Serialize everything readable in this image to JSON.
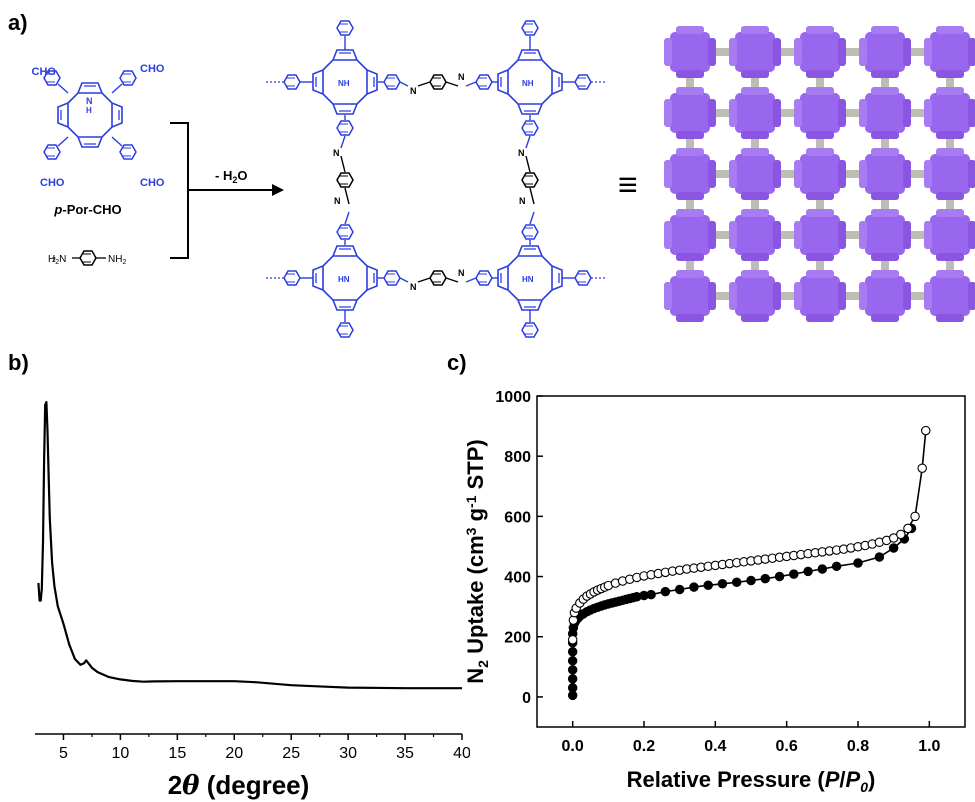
{
  "panels": {
    "a": "a)",
    "b": "b)",
    "c": "c)"
  },
  "scheme": {
    "aldehyde_group": "CHO",
    "monomer_name_italic": "p",
    "monomer_name_rest": "-Por-CHO",
    "amine_nh2": "NH",
    "amine_sub": "2",
    "pyrrole_nh": "NH",
    "pyrrole_hn": "HN",
    "imine_n": "N",
    "pyrrole_h": "H",
    "condensation_prefix": "- H",
    "condensation_sub": "2",
    "condensation_suffix": "O",
    "equiv_symbol": "≡",
    "colors": {
      "structure": "#2b3de0",
      "framework_node": "#9966ee",
      "framework_rod": "#bdbdb4"
    }
  },
  "chart_data": [
    {
      "type": "line",
      "xlabel_prefix": "2",
      "xlabel_theta": "θ",
      "xlabel_suffix": " (degree)",
      "xlim": [
        2.5,
        40
      ],
      "xticks": [
        5,
        10,
        15,
        20,
        25,
        30,
        35,
        40
      ],
      "y_axis_shown": false,
      "series": [
        {
          "x": [
            2.8,
            2.9,
            3.0,
            3.1,
            3.2,
            3.3,
            3.4,
            3.5,
            3.6,
            3.7,
            3.8,
            4.0,
            4.2,
            4.5,
            5.0,
            5.5,
            6.0,
            6.5,
            6.8,
            7.0,
            7.2,
            7.5,
            8.0,
            9.0,
            10.0,
            11.0,
            12.0,
            13.0,
            15.0,
            17.0,
            20.0,
            22.0,
            25.0,
            28.0,
            30.0,
            35.0,
            40.0
          ],
          "y": [
            0.38,
            0.32,
            0.32,
            0.36,
            0.52,
            0.8,
            0.99,
            1.0,
            0.9,
            0.74,
            0.6,
            0.45,
            0.37,
            0.3,
            0.24,
            0.17,
            0.12,
            0.1,
            0.105,
            0.115,
            0.105,
            0.09,
            0.075,
            0.058,
            0.05,
            0.045,
            0.042,
            0.043,
            0.044,
            0.044,
            0.044,
            0.04,
            0.03,
            0.025,
            0.022,
            0.02,
            0.02
          ]
        }
      ]
    },
    {
      "type": "scatter",
      "xlabel": "Relative Pressure (",
      "xlabel_italic": "P",
      "xlabel_slash": "/",
      "xlabel_italic2": "P",
      "xlabel_sub": "0",
      "xlabel_close": ")",
      "ylabel_n": "N",
      "ylabel_sub": "2",
      "ylabel_main": " Uptake (cm",
      "ylabel_sup3": "3",
      "ylabel_g": " g",
      "ylabel_sup": "-1",
      "ylabel_end": " STP)",
      "xlim": [
        -0.1,
        1.1
      ],
      "ylim": [
        -100,
        1000
      ],
      "xticks": [
        0.0,
        0.2,
        0.4,
        0.6,
        0.8,
        1.0
      ],
      "yticks": [
        0,
        200,
        400,
        600,
        800,
        1000
      ],
      "series": [
        {
          "marker": "filled-circle",
          "x": [
            0.0,
            0.0,
            0.0,
            0.0,
            0.0,
            0.0,
            0.0,
            0.0,
            0.002,
            0.005,
            0.01,
            0.015,
            0.02,
            0.03,
            0.04,
            0.05,
            0.06,
            0.07,
            0.08,
            0.09,
            0.1,
            0.11,
            0.12,
            0.13,
            0.14,
            0.15,
            0.16,
            0.17,
            0.18,
            0.2,
            0.22,
            0.26,
            0.3,
            0.34,
            0.38,
            0.42,
            0.46,
            0.5,
            0.54,
            0.58,
            0.62,
            0.66,
            0.7,
            0.74,
            0.8,
            0.86,
            0.9,
            0.93,
            0.95
          ],
          "y": [
            5,
            30,
            60,
            90,
            120,
            150,
            180,
            210,
            230,
            245,
            255,
            262,
            268,
            276,
            283,
            289,
            294,
            298,
            302,
            306,
            309,
            312,
            315,
            318,
            321,
            324,
            327,
            330,
            333,
            337,
            340,
            350,
            357,
            365,
            371,
            376,
            381,
            387,
            393,
            400,
            408,
            417,
            425,
            434,
            445,
            465,
            495,
            525,
            560
          ]
        },
        {
          "marker": "open-circle",
          "x": [
            0.0,
            0.002,
            0.005,
            0.01,
            0.02,
            0.03,
            0.04,
            0.05,
            0.06,
            0.07,
            0.08,
            0.09,
            0.1,
            0.12,
            0.14,
            0.16,
            0.18,
            0.2,
            0.22,
            0.24,
            0.26,
            0.28,
            0.3,
            0.32,
            0.34,
            0.36,
            0.38,
            0.4,
            0.42,
            0.44,
            0.46,
            0.48,
            0.5,
            0.52,
            0.54,
            0.56,
            0.58,
            0.6,
            0.62,
            0.64,
            0.66,
            0.68,
            0.7,
            0.72,
            0.74,
            0.76,
            0.78,
            0.8,
            0.82,
            0.84,
            0.86,
            0.88,
            0.9,
            0.92,
            0.94,
            0.96,
            0.98,
            0.99
          ],
          "y": [
            190,
            255,
            280,
            295,
            312,
            325,
            335,
            342,
            349,
            355,
            360,
            365,
            370,
            378,
            385,
            391,
            397,
            402,
            406,
            410,
            414,
            418,
            421,
            425,
            428,
            431,
            434,
            437,
            440,
            443,
            446,
            449,
            452,
            455,
            458,
            461,
            464,
            467,
            470,
            473,
            476,
            479,
            482,
            485,
            488,
            491,
            495,
            499,
            503,
            508,
            514,
            520,
            528,
            540,
            560,
            600,
            760,
            885
          ]
        }
      ]
    }
  ]
}
